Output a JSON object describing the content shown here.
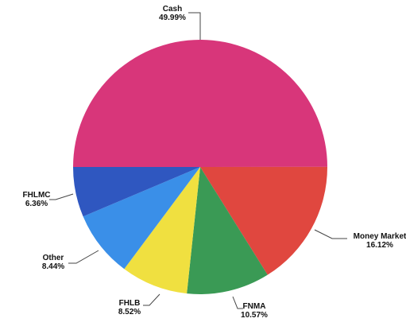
{
  "chart_data": {
    "type": "pie",
    "title": "",
    "start_angle_deg": 180,
    "direction": "clockwise",
    "slices": [
      {
        "name": "Cash",
        "value": 49.99,
        "label": "49.99%",
        "color": "#d8367a"
      },
      {
        "name": "Money Market",
        "value": 16.12,
        "label": "16.12%",
        "color": "#e0473f"
      },
      {
        "name": "FNMA",
        "value": 10.57,
        "label": "10.57%",
        "color": "#3a9a55"
      },
      {
        "name": "FHLB",
        "value": 8.52,
        "label": "8.52%",
        "color": "#f0e040"
      },
      {
        "name": "Other",
        "value": 8.44,
        "label": "8.44%",
        "color": "#3a8fe8"
      },
      {
        "name": "FHLMC",
        "value": 6.36,
        "label": "6.36%",
        "color": "#2f57c0"
      }
    ]
  }
}
